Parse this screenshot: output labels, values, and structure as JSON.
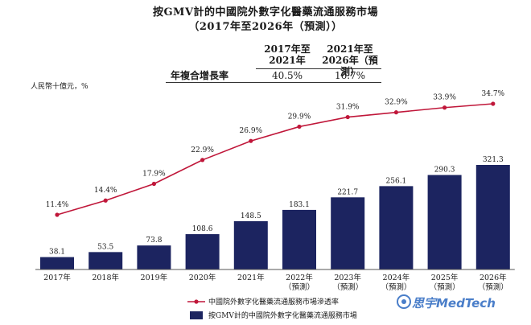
{
  "header": {
    "title_line1": "按GMV計的中國院外數字化醫藥流通服務市場",
    "title_line2": "（2017年至2026年（預測））"
  },
  "cagr_table": {
    "col1_line1": "2017年至",
    "col1_line2": "2021年",
    "col2_line1": "2021年至",
    "col2_line2": "2026年（預測）",
    "row_label": "年複合增長率",
    "value1": "40.5%",
    "value2": "16.7%"
  },
  "unit_label": "人民幣十億元，%",
  "legend": {
    "line_label": "中國院外數字化醫藥流通服務市場滲透率",
    "bar_label": "按GMV計的中國院外數字化醫藥流通服務市場"
  },
  "watermark": "思宇MedTech",
  "chart_data": {
    "type": "bar",
    "categories": [
      "2017年",
      "2018年",
      "2019年",
      "2020年",
      "2021年",
      "2022年",
      "2023年",
      "2024年",
      "2025年",
      "2026年"
    ],
    "category_sublabels": [
      "",
      "",
      "",
      "",
      "",
      "（預測）",
      "（預測）",
      "（預測）",
      "（預測）",
      "（預測）"
    ],
    "series": [
      {
        "name": "按GMV計的中國院外數字化醫藥流通服務市場",
        "type": "bar",
        "color": "#1c2460",
        "values": [
          38.1,
          53.5,
          73.8,
          108.6,
          148.5,
          183.1,
          221.7,
          256.1,
          290.3,
          321.3
        ],
        "labels": [
          "38.1",
          "53.5",
          "73.8",
          "108.6",
          "148.5",
          "183.1",
          "221.7",
          "256.1",
          "290.3",
          "321.3"
        ]
      },
      {
        "name": "中國院外數字化醫藥流通服務市場滲透率",
        "type": "line",
        "color": "#c0173a",
        "values": [
          11.4,
          14.4,
          17.9,
          22.9,
          26.9,
          29.9,
          31.9,
          32.9,
          33.9,
          34.7
        ],
        "labels": [
          "11.4%",
          "14.4%",
          "17.9%",
          "22.9%",
          "26.9%",
          "29.9%",
          "31.9%",
          "32.9%",
          "33.9%",
          "34.7%"
        ]
      }
    ],
    "bar_ylim": [
      0,
      321.3
    ],
    "line_ylim": [
      11.4,
      34.7
    ],
    "grid": false,
    "legend_position": "bottom-left"
  }
}
